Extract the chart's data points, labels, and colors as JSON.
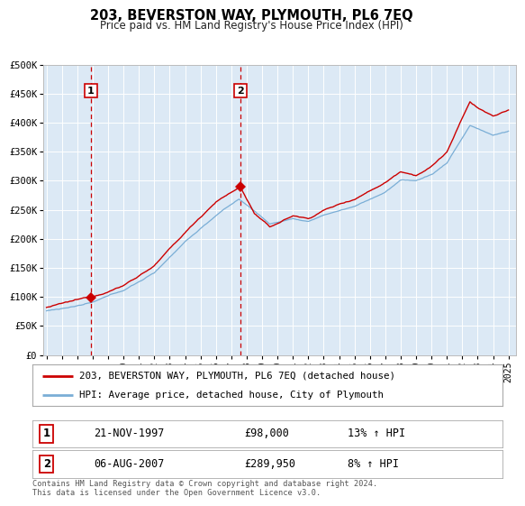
{
  "title": "203, BEVERSTON WAY, PLYMOUTH, PL6 7EQ",
  "subtitle": "Price paid vs. HM Land Registry's House Price Index (HPI)",
  "background_color": "#ffffff",
  "plot_background_color": "#dce9f5",
  "grid_color": "#ffffff",
  "ylim": [
    0,
    500000
  ],
  "yticks": [
    0,
    50000,
    100000,
    150000,
    200000,
    250000,
    300000,
    350000,
    400000,
    450000,
    500000
  ],
  "ytick_labels": [
    "£0",
    "£50K",
    "£100K",
    "£150K",
    "£200K",
    "£250K",
    "£300K",
    "£350K",
    "£400K",
    "£450K",
    "£500K"
  ],
  "xlim_start": 1994.8,
  "xlim_end": 2025.5,
  "xticks": [
    1995,
    1996,
    1997,
    1998,
    1999,
    2000,
    2001,
    2002,
    2003,
    2004,
    2005,
    2006,
    2007,
    2008,
    2009,
    2010,
    2011,
    2012,
    2013,
    2014,
    2015,
    2016,
    2017,
    2018,
    2019,
    2020,
    2021,
    2022,
    2023,
    2024,
    2025
  ],
  "purchase1_x": 1997.89,
  "purchase1_y": 98000,
  "purchase1_label": "1",
  "purchase1_date": "21-NOV-1997",
  "purchase1_price": "£98,000",
  "purchase1_hpi": "13% ↑ HPI",
  "purchase2_x": 2007.59,
  "purchase2_y": 289950,
  "purchase2_label": "2",
  "purchase2_date": "06-AUG-2007",
  "purchase2_price": "£289,950",
  "purchase2_hpi": "8% ↑ HPI",
  "line1_color": "#cc0000",
  "line2_color": "#7aaed6",
  "line1_label": "203, BEVERSTON WAY, PLYMOUTH, PL6 7EQ (detached house)",
  "line2_label": "HPI: Average price, detached house, City of Plymouth",
  "marker_color": "#cc0000",
  "vline_color": "#cc0000",
  "footer_line1": "Contains HM Land Registry data © Crown copyright and database right 2024.",
  "footer_line2": "This data is licensed under the Open Government Licence v3.0."
}
